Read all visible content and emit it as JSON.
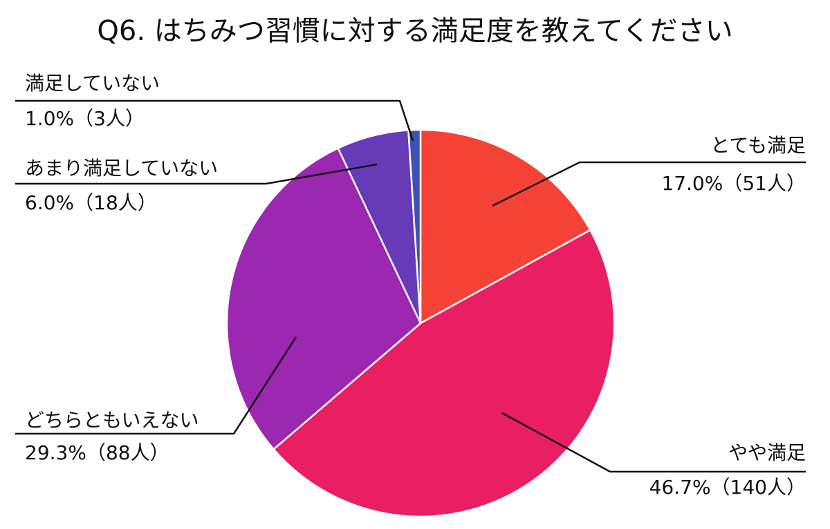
{
  "chart_data": {
    "type": "pie",
    "title": "Q6. はちみつ習慣に対する満足度を教えてください",
    "slices": [
      {
        "label": "とても満足",
        "value_text": "17.0%（51人）",
        "percent": 17.0,
        "count": 51,
        "color": "#f44336"
      },
      {
        "label": "やや満足",
        "value_text": "46.7%（140人）",
        "percent": 46.7,
        "count": 140,
        "color": "#e91e63"
      },
      {
        "label": "どちらともいえない",
        "value_text": "29.3%（88人）",
        "percent": 29.3,
        "count": 88,
        "color": "#9c27b0"
      },
      {
        "label": "あまり満足していない",
        "value_text": "6.0%（18人）",
        "percent": 6.0,
        "count": 18,
        "color": "#673ab7"
      },
      {
        "label": "満足していない",
        "value_text": "1.0%（3人）",
        "percent": 1.0,
        "count": 3,
        "color": "#3f51b5"
      }
    ]
  }
}
